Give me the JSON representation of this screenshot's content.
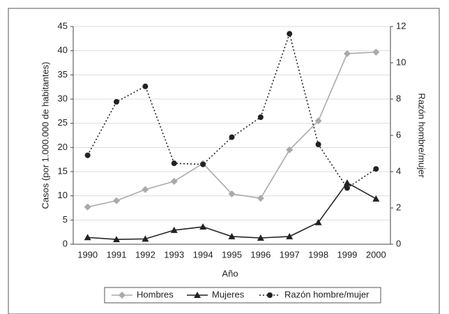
{
  "chart_data": {
    "type": "line",
    "xlabel": "Año",
    "ylabel": "Casos (por 1.000.000 de habitantes)",
    "y2label": "Razón hombre/mujer",
    "categories": [
      "1990",
      "1991",
      "1992",
      "1993",
      "1994",
      "1995",
      "1996",
      "1997",
      "1998",
      "1999",
      "2000"
    ],
    "ylim": [
      0,
      45
    ],
    "yticks": [
      0,
      5,
      10,
      15,
      20,
      25,
      30,
      35,
      40,
      45
    ],
    "y2lim": [
      0,
      12
    ],
    "y2ticks": [
      0,
      2,
      4,
      6,
      8,
      10,
      12
    ],
    "grid": true,
    "legend": "bottom",
    "series": [
      {
        "name": "Hombres",
        "color": "#aaaaaa",
        "marker": "diamond",
        "line_style": "solid",
        "values": [
          7.7,
          9,
          11.3,
          13,
          16.7,
          10.4,
          9.5,
          19.5,
          25.5,
          39.4,
          39.7
        ]
      },
      {
        "name": "Mujeres",
        "color": "#222222",
        "marker": "triangle",
        "line_style": "solid",
        "values": [
          1.4,
          1,
          1.1,
          2.9,
          3.6,
          1.6,
          1.3,
          1.6,
          4.5,
          12.7,
          9.4
        ]
      },
      {
        "name": "Razón hombre/mujer",
        "color": "#222222",
        "marker": "circle",
        "line_style": "dotted",
        "axis": "y2",
        "values": [
          4.9,
          7.85,
          8.7,
          4.46,
          4.4,
          5.9,
          7.0,
          11.6,
          5.5,
          3.1,
          4.15
        ]
      }
    ]
  }
}
